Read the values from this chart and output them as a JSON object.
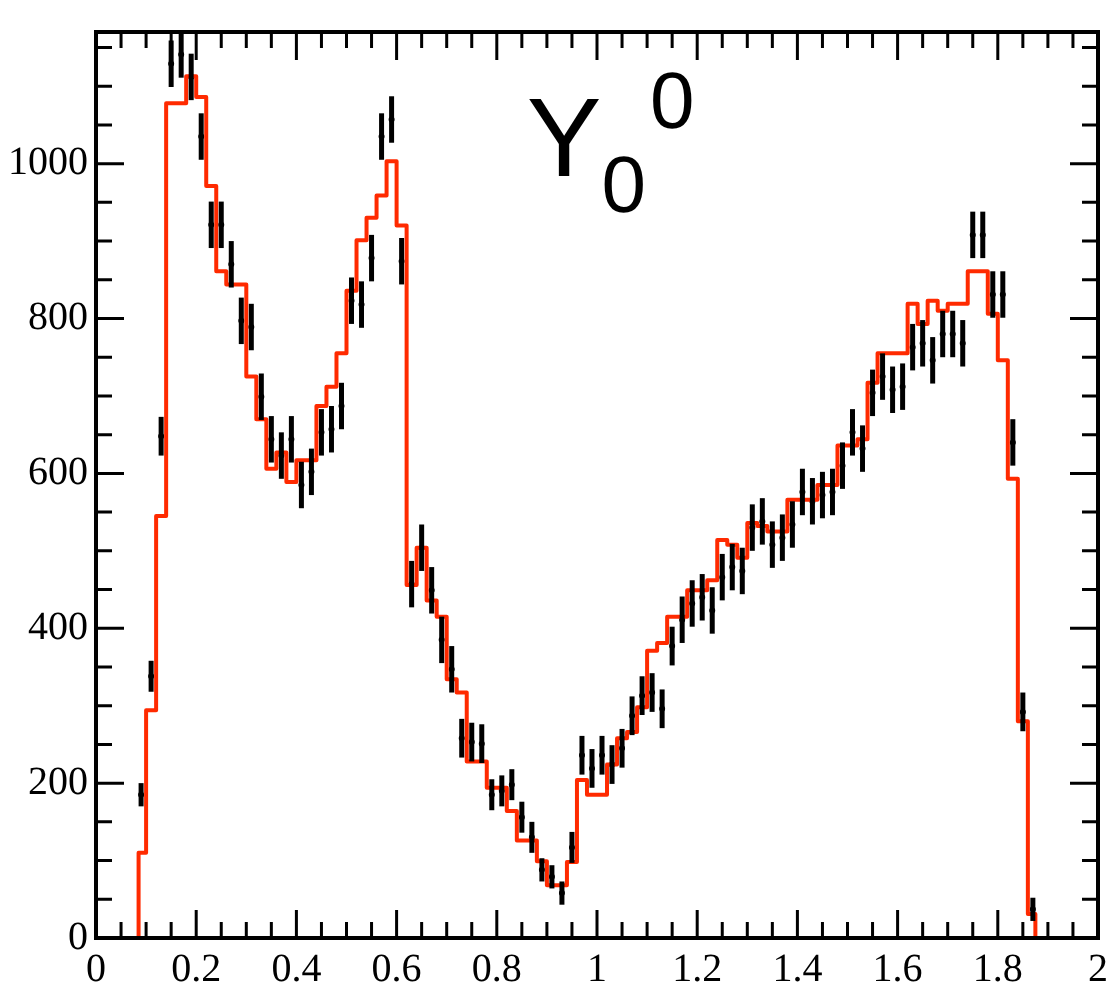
{
  "chart_data": {
    "type": "step",
    "xlim": [
      0,
      2
    ],
    "ylim": [
      0,
      1170
    ],
    "xticks": [
      0,
      {
        "value": 0.05,
        "label": null
      },
      {
        "value": 0.1,
        "label": null
      },
      {
        "value": 0.15,
        "label": null
      },
      0.2,
      {
        "value": 0.25,
        "label": null
      },
      {
        "value": 0.3,
        "label": null
      },
      {
        "value": 0.35,
        "label": null
      },
      0.4,
      {
        "value": 0.45,
        "label": null
      },
      {
        "value": 0.5,
        "label": null
      },
      {
        "value": 0.55,
        "label": null
      },
      0.6,
      {
        "value": 0.65,
        "label": null
      },
      {
        "value": 0.7,
        "label": null
      },
      {
        "value": 0.75,
        "label": null
      },
      0.8,
      {
        "value": 0.85,
        "label": null
      },
      {
        "value": 0.9,
        "label": null
      },
      {
        "value": 0.95,
        "label": null
      },
      1,
      {
        "value": 1.05,
        "label": null
      },
      {
        "value": 1.1,
        "label": null
      },
      {
        "value": 1.15,
        "label": null
      },
      1.2,
      {
        "value": 1.25,
        "label": null
      },
      {
        "value": 1.3,
        "label": null
      },
      {
        "value": 1.35,
        "label": null
      },
      1.4,
      {
        "value": 1.45,
        "label": null
      },
      {
        "value": 1.5,
        "label": null
      },
      {
        "value": 1.55,
        "label": null
      },
      1.6,
      {
        "value": 1.65,
        "label": null
      },
      {
        "value": 1.7,
        "label": null
      },
      {
        "value": 1.75,
        "label": null
      },
      1.8,
      {
        "value": 1.85,
        "label": null
      },
      {
        "value": 1.9,
        "label": null
      },
      {
        "value": 1.95,
        "label": null
      },
      2
    ],
    "yticks": [
      0,
      {
        "value": 50,
        "label": null
      },
      {
        "value": 100,
        "label": null
      },
      {
        "value": 150,
        "label": null
      },
      200,
      {
        "value": 250,
        "label": null
      },
      {
        "value": 300,
        "label": null
      },
      {
        "value": 350,
        "label": null
      },
      400,
      {
        "value": 450,
        "label": null
      },
      {
        "value": 500,
        "label": null
      },
      {
        "value": 550,
        "label": null
      },
      600,
      {
        "value": 650,
        "label": null
      },
      {
        "value": 700,
        "label": null
      },
      {
        "value": 750,
        "label": null
      },
      800,
      {
        "value": 850,
        "label": null
      },
      {
        "value": 900,
        "label": null
      },
      {
        "value": 950,
        "label": null
      },
      1000,
      {
        "value": 1050,
        "label": null
      },
      {
        "value": 1100,
        "label": null
      },
      {
        "value": 1150,
        "label": null
      }
    ],
    "annotations": [
      "Y$_{0}$$^{0}$"
    ],
    "grid": false,
    "legend": false,
    "series": [
      {
        "color": "#ff2a00",
        "x": [
          0.08,
          0.09,
          0.11,
          0.13,
          0.15,
          0.17,
          0.19,
          0.21,
          0.23,
          0.25,
          0.27,
          0.29,
          0.31,
          0.33,
          0.35,
          0.37,
          0.39,
          0.41,
          0.43,
          0.45,
          0.47,
          0.49,
          0.51,
          0.53,
          0.55,
          0.57,
          0.59,
          0.61,
          0.63,
          0.65,
          0.67,
          0.69,
          0.71,
          0.73,
          0.75,
          0.77,
          0.79,
          0.81,
          0.83,
          0.85,
          0.87,
          0.89,
          0.91,
          0.93,
          0.95,
          0.97,
          0.99,
          1.01,
          1.03,
          1.05,
          1.07,
          1.09,
          1.11,
          1.13,
          1.15,
          1.17,
          1.19,
          1.21,
          1.23,
          1.25,
          1.27,
          1.29,
          1.31,
          1.33,
          1.35,
          1.37,
          1.39,
          1.41,
          1.43,
          1.45,
          1.47,
          1.49,
          1.51,
          1.53,
          1.55,
          1.57,
          1.59,
          1.61,
          1.63,
          1.65,
          1.67,
          1.69,
          1.71,
          1.73,
          1.75,
          1.77,
          1.79,
          1.81,
          1.83,
          1.85,
          1.87,
          1.88
        ],
        "values": [
          0,
          110,
          294,
          545,
          1078,
          1078,
          1113,
          1086,
          971,
          861,
          844,
          844,
          725,
          670,
          606,
          627,
          589,
          617,
          617,
          687,
          712,
          755,
          836,
          901,
          930,
          959,
          1003,
          920,
          456,
          504,
          436,
          415,
          334,
          317,
          228,
          228,
          194,
          194,
          164,
          126,
          126,
          99,
          68,
          68,
          98,
          204,
          185,
          185,
          224,
          258,
          266,
          298,
          371,
          381,
          415,
          415,
          449,
          449,
          462,
          514,
          508,
          491,
          536,
          532,
          525,
          525,
          566,
          566,
          566,
          585,
          585,
          636,
          636,
          644,
          717,
          755,
          755,
          755,
          819,
          793,
          823,
          810,
          819,
          819,
          861,
          861,
          806,
          746,
          593,
          280,
          31,
          0
        ]
      },
      {
        "type": "scatter",
        "color": "#000000",
        "marker": "circle",
        "x": [
          0.09,
          0.11,
          0.13,
          0.15,
          0.17,
          0.19,
          0.21,
          0.23,
          0.25,
          0.27,
          0.29,
          0.31,
          0.33,
          0.35,
          0.37,
          0.39,
          0.41,
          0.43,
          0.45,
          0.47,
          0.49,
          0.51,
          0.53,
          0.55,
          0.57,
          0.59,
          0.61,
          0.63,
          0.65,
          0.67,
          0.69,
          0.71,
          0.73,
          0.75,
          0.77,
          0.79,
          0.81,
          0.83,
          0.85,
          0.87,
          0.89,
          0.91,
          0.93,
          0.95,
          0.97,
          0.99,
          1.01,
          1.03,
          1.05,
          1.07,
          1.09,
          1.11,
          1.13,
          1.15,
          1.17,
          1.19,
          1.21,
          1.23,
          1.25,
          1.27,
          1.29,
          1.31,
          1.33,
          1.35,
          1.37,
          1.39,
          1.41,
          1.43,
          1.45,
          1.47,
          1.49,
          1.51,
          1.53,
          1.55,
          1.57,
          1.59,
          1.61,
          1.63,
          1.65,
          1.67,
          1.69,
          1.71,
          1.73,
          1.75,
          1.77,
          1.79,
          1.81,
          1.83,
          1.85,
          1.87
        ],
        "values": [
          185,
          338,
          648,
          1129,
          1141,
          1112,
          1035,
          921,
          921,
          870,
          797,
          789,
          699,
          644,
          623,
          644,
          585,
          602,
          653,
          657,
          687,
          823,
          818,
          878,
          1035,
          1057,
          874,
          457,
          504,
          449,
          385,
          347,
          258,
          253,
          251,
          185,
          190,
          198,
          156,
          130,
          88,
          79,
          58,
          117,
          236,
          219,
          236,
          224,
          245,
          287,
          313,
          317,
          296,
          377,
          411,
          432,
          440,
          423,
          466,
          479,
          474,
          530,
          538,
          508,
          517,
          534,
          576,
          564,
          572,
          576,
          610,
          653,
          632,
          704,
          725,
          708,
          712,
          763,
          768,
          746,
          780,
          780,
          768,
          908,
          908,
          831,
          831,
          640,
          292,
          37
        ],
        "errors": [
          15,
          20,
          25,
          30,
          30,
          30,
          30,
          30,
          30,
          30,
          30,
          30,
          30,
          30,
          30,
          30,
          30,
          30,
          30,
          30,
          30,
          30,
          30,
          30,
          30,
          30,
          30,
          30,
          30,
          30,
          30,
          30,
          25,
          25,
          25,
          20,
          20,
          20,
          20,
          20,
          15,
          15,
          15,
          20,
          25,
          25,
          25,
          25,
          25,
          25,
          25,
          25,
          25,
          25,
          30,
          30,
          30,
          30,
          30,
          30,
          30,
          30,
          30,
          30,
          30,
          30,
          30,
          30,
          30,
          30,
          30,
          30,
          30,
          30,
          30,
          30,
          30,
          30,
          30,
          30,
          30,
          30,
          30,
          30,
          30,
          30,
          30,
          30,
          25,
          15
        ]
      }
    ]
  }
}
